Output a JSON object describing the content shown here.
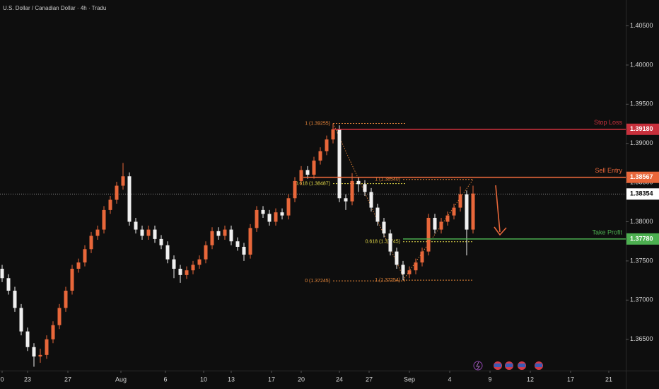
{
  "chart_data": {
    "type": "candlestick",
    "title": "U.S. Dollar / Canadian Dollar · 4h · Tradu",
    "up_color": "#e8673a",
    "down_color": "#f0f0f0",
    "xlim": [
      0,
      295
    ],
    "ylim": [
      1.361,
      1.4083
    ],
    "xticks": [
      {
        "value": 1,
        "label": "0"
      },
      {
        "value": 13,
        "label": "23"
      },
      {
        "value": 32,
        "label": "27"
      },
      {
        "value": 57,
        "label": "Aug"
      },
      {
        "value": 78,
        "label": "6"
      },
      {
        "value": 96,
        "label": "10"
      },
      {
        "value": 109,
        "label": "13"
      },
      {
        "value": 128,
        "label": "17"
      },
      {
        "value": 142,
        "label": "20"
      },
      {
        "value": 160,
        "label": "24"
      },
      {
        "value": 174,
        "label": "27"
      },
      {
        "value": 193,
        "label": "Sep"
      },
      {
        "value": 212,
        "label": "4"
      },
      {
        "value": 231,
        "label": "9"
      },
      {
        "value": 250,
        "label": "12"
      },
      {
        "value": 269,
        "label": "17"
      },
      {
        "value": 287,
        "label": "21"
      }
    ],
    "yticks": [
      {
        "value": 1.405,
        "label": "1.40500"
      },
      {
        "value": 1.4,
        "label": "1.40000"
      },
      {
        "value": 1.395,
        "label": "1.39500"
      },
      {
        "value": 1.39,
        "label": "1.39000"
      },
      {
        "value": 1.385,
        "label": "1.38500"
      },
      {
        "value": 1.38,
        "label": "1.38000"
      },
      {
        "value": 1.375,
        "label": "1.37500"
      },
      {
        "value": 1.37,
        "label": "1.37000"
      },
      {
        "value": 1.365,
        "label": "1.36500"
      }
    ],
    "x": [
      1,
      4,
      7,
      10,
      13,
      16,
      19,
      22,
      25,
      28,
      31,
      34,
      37,
      40,
      43,
      46,
      49,
      52,
      55,
      58,
      61,
      64,
      67,
      70,
      73,
      76,
      79,
      82,
      85,
      88,
      91,
      94,
      97,
      100,
      103,
      106,
      109,
      112,
      115,
      118,
      121,
      124,
      127,
      130,
      133,
      136,
      139,
      142,
      145,
      148,
      151,
      154,
      157,
      160,
      163,
      166,
      169,
      172,
      175,
      178,
      181,
      184,
      187,
      190,
      193,
      196,
      199,
      202,
      205,
      208,
      211,
      214,
      217,
      220,
      223
    ],
    "open": [
      1.374,
      1.3728,
      1.3712,
      1.369,
      1.366,
      1.364,
      1.3628,
      1.363,
      1.365,
      1.3668,
      1.369,
      1.3712,
      1.374,
      1.3748,
      1.3765,
      1.3782,
      1.379,
      1.3815,
      1.3828,
      1.3846,
      1.3858,
      1.38,
      1.379,
      1.3782,
      1.379,
      1.3778,
      1.377,
      1.3752,
      1.374,
      1.3732,
      1.3738,
      1.3745,
      1.3752,
      1.377,
      1.3788,
      1.3782,
      1.379,
      1.3775,
      1.3768,
      1.3758,
      1.3792,
      1.3815,
      1.381,
      1.38,
      1.3812,
      1.3808,
      1.383,
      1.3852,
      1.3866,
      1.386,
      1.3878,
      1.389,
      1.3905,
      1.3918,
      1.383,
      1.3826,
      1.3852,
      1.3848,
      1.3838,
      1.3818,
      1.38,
      1.3785,
      1.3762,
      1.3745,
      1.3733,
      1.3738,
      1.3748,
      1.3762,
      1.3805,
      1.379,
      1.38,
      1.3808,
      1.3818,
      1.3835,
      1.379
    ],
    "high": [
      1.3745,
      1.3733,
      1.3717,
      1.3695,
      1.3665,
      1.3645,
      1.3638,
      1.3655,
      1.3673,
      1.3695,
      1.3717,
      1.3745,
      1.3753,
      1.377,
      1.3787,
      1.3795,
      1.382,
      1.3833,
      1.3851,
      1.3875,
      1.3863,
      1.3805,
      1.3795,
      1.3795,
      1.3795,
      1.3783,
      1.3775,
      1.3757,
      1.3745,
      1.3743,
      1.375,
      1.3757,
      1.3775,
      1.3793,
      1.3793,
      1.3795,
      1.3795,
      1.378,
      1.3773,
      1.3797,
      1.382,
      1.382,
      1.3815,
      1.3817,
      1.3817,
      1.3835,
      1.3857,
      1.3871,
      1.3871,
      1.3883,
      1.3895,
      1.391,
      1.39255,
      1.3923,
      1.3835,
      1.3862,
      1.3857,
      1.3853,
      1.3843,
      1.3823,
      1.3805,
      1.379,
      1.3767,
      1.375,
      1.3743,
      1.3753,
      1.3767,
      1.381,
      1.381,
      1.3805,
      1.3813,
      1.3823,
      1.3845,
      1.384,
      1.3846
    ],
    "low": [
      1.3723,
      1.3707,
      1.3685,
      1.3655,
      1.3635,
      1.3615,
      1.362,
      1.3625,
      1.3645,
      1.3663,
      1.3685,
      1.3707,
      1.3735,
      1.3743,
      1.376,
      1.3777,
      1.3785,
      1.381,
      1.3823,
      1.3841,
      1.3795,
      1.3785,
      1.3777,
      1.3777,
      1.3773,
      1.3765,
      1.3747,
      1.3728,
      1.3722,
      1.3727,
      1.3733,
      1.374,
      1.3747,
      1.3765,
      1.3777,
      1.3777,
      1.377,
      1.3763,
      1.375,
      1.3753,
      1.3787,
      1.3805,
      1.3795,
      1.3795,
      1.3803,
      1.3803,
      1.3825,
      1.3847,
      1.3855,
      1.3855,
      1.3873,
      1.3885,
      1.39,
      1.3825,
      1.3815,
      1.3821,
      1.3838,
      1.3833,
      1.3813,
      1.3795,
      1.378,
      1.3757,
      1.374,
      1.37254,
      1.3728,
      1.3733,
      1.3743,
      1.3757,
      1.3785,
      1.3785,
      1.3795,
      1.3803,
      1.3813,
      1.3757,
      1.3785
    ],
    "close": [
      1.3728,
      1.3712,
      1.369,
      1.366,
      1.364,
      1.3628,
      1.363,
      1.365,
      1.3668,
      1.369,
      1.3712,
      1.374,
      1.3748,
      1.3765,
      1.3782,
      1.379,
      1.3815,
      1.3828,
      1.3846,
      1.3858,
      1.38,
      1.379,
      1.3782,
      1.379,
      1.3778,
      1.377,
      1.3752,
      1.374,
      1.3732,
      1.3738,
      1.3745,
      1.3752,
      1.377,
      1.3788,
      1.3782,
      1.379,
      1.3775,
      1.3768,
      1.3758,
      1.3792,
      1.3815,
      1.381,
      1.38,
      1.3812,
      1.3808,
      1.383,
      1.3852,
      1.3866,
      1.386,
      1.3878,
      1.389,
      1.3905,
      1.3918,
      1.383,
      1.3826,
      1.3852,
      1.3848,
      1.3838,
      1.3818,
      1.38,
      1.3785,
      1.3762,
      1.3745,
      1.3733,
      1.3738,
      1.3748,
      1.3762,
      1.3805,
      1.379,
      1.38,
      1.3808,
      1.3818,
      1.3835,
      1.379,
      1.3836
    ],
    "levels": [
      {
        "label": "Stop Loss",
        "value": 1.3918,
        "value_label": "1.39180",
        "color": "#c8303c",
        "x_start": 157
      },
      {
        "label": "Sell Entry",
        "value": 1.38567,
        "value_label": "1.38567",
        "color": "#e8673a",
        "x_start": 143
      },
      {
        "label": "Take Profit",
        "value": 1.3778,
        "value_label": "1.37780",
        "color": "#4caf50",
        "x_start": 190
      }
    ],
    "current_price": 1.38354,
    "fibs": [
      {
        "x": [
          157,
          191
        ],
        "levels": [
          {
            "label": "1 (1.39255)",
            "value": 1.39255,
            "color": "#e8873a"
          },
          {
            "label": "0.618 (1.38487)",
            "value": 1.38487,
            "color": "#e6dc4a"
          },
          {
            "label": "0 (1.37245)",
            "value": 1.37245,
            "color": "#e8873a"
          }
        ]
      },
      {
        "x": [
          190,
          223
        ],
        "levels": [
          {
            "label": "1 (1.37254)",
            "value": 1.37254,
            "color": "#e8873a"
          },
          {
            "label": "0.618 (1.37745)",
            "value": 1.37745,
            "color": "#e6dc4a"
          },
          {
            "label": "1 (1.38540)",
            "value": 1.3854,
            "color": "#e8873a"
          }
        ]
      }
    ]
  }
}
